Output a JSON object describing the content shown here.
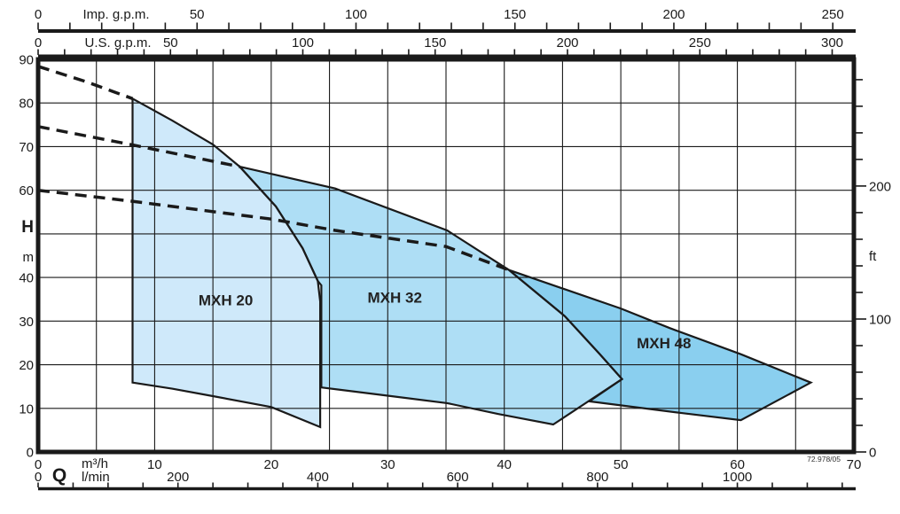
{
  "labels": {
    "imp_axis": "Imp. g.p.m.",
    "us_axis": "U.S. g.p.m.",
    "head": "H",
    "head_unit": "m",
    "ft_unit": "ft",
    "flow": "Q",
    "flow_unit_m3h": "m³/h",
    "flow_unit_lmin": "l/min",
    "code": "72.978/05"
  },
  "colors": {
    "line": "#1a1a1a",
    "text": "#1a1a1a",
    "mxh20_fill": "#cfe9fa",
    "mxh32_fill": "#aedef5",
    "mxh48_fill": "#8acfef"
  },
  "axes": {
    "imp_gpm": {
      "name": "Imp. g.p.m.",
      "major_ticks": [
        0,
        50,
        100,
        150,
        200,
        250
      ],
      "minor_step": 10,
      "max": 250,
      "m3h_per_unit": 0.27276
    },
    "us_gpm": {
      "name": "U.S. g.p.m.",
      "major_ticks": [
        0,
        50,
        100,
        150,
        200,
        250,
        300
      ],
      "minor_step": 10,
      "max": 300,
      "m3h_per_unit": 0.22712
    },
    "h_m": {
      "name": "H (m)",
      "labeled_ticks": [
        90,
        80,
        70,
        60,
        40,
        30,
        20,
        10,
        0
      ],
      "grid_step": 10,
      "range": [
        0,
        90
      ]
    },
    "ft": {
      "name": "ft",
      "major_ticks": [
        0,
        100,
        200
      ],
      "minor_step": 20,
      "max": 280,
      "m_per_unit": 0.3048
    },
    "q_m3h": {
      "name": "Q (m³/h)",
      "labeled_ticks": [
        0,
        10,
        20,
        30,
        40,
        50,
        60,
        70
      ],
      "grid_step": 5,
      "range": [
        0,
        70
      ]
    },
    "l_min": {
      "name": "l/min",
      "major_ticks": [
        0,
        200,
        400,
        600,
        800,
        1000
      ],
      "minor_step": 50,
      "max": 1150,
      "m3h_per_unit": 0.06
    }
  },
  "chart_data": {
    "type": "area",
    "xlabel": "Q (m³/h)",
    "ylabel": "H (m)",
    "xlim": [
      0,
      70
    ],
    "ylim": [
      0,
      90
    ],
    "grid": true,
    "series": [
      {
        "name": "MXH 20",
        "color": "#cfe9fa",
        "label_pos": [
          16.1,
          33.6
        ],
        "polygon": [
          [
            8.1,
            81
          ],
          [
            11.5,
            76
          ],
          [
            15,
            70.5
          ],
          [
            17.3,
            65.4
          ],
          [
            20.4,
            56.3
          ],
          [
            22.7,
            46.7
          ],
          [
            24,
            39.2
          ],
          [
            24.2,
            34.5
          ],
          [
            24.2,
            5.7
          ],
          [
            20,
            10.3
          ],
          [
            15,
            12.8
          ],
          [
            11.5,
            14.5
          ],
          [
            8.1,
            15.9
          ]
        ]
      },
      {
        "name": "MXH 32",
        "color": "#aedef5",
        "label_pos": [
          30.6,
          34.2
        ],
        "polygon": [
          [
            17.3,
            65.4
          ],
          [
            25.5,
            60.4
          ],
          [
            35.1,
            50.8
          ],
          [
            40.4,
            41.7
          ],
          [
            45.2,
            31.1
          ],
          [
            48.2,
            22.4
          ],
          [
            50.1,
            16.7
          ],
          [
            44.2,
            6.3
          ],
          [
            39.5,
            8.7
          ],
          [
            35.1,
            11.2
          ],
          [
            30.3,
            12.8
          ],
          [
            24.3,
            14.8
          ],
          [
            24.3,
            38.2
          ],
          [
            24,
            39.2
          ],
          [
            22.7,
            46.7
          ],
          [
            20.4,
            56.3
          ]
        ]
      },
      {
        "name": "MXH 48",
        "color": "#8acfef",
        "label_pos": [
          53.7,
          23.8
        ],
        "polygon": [
          [
            40.4,
            41.7
          ],
          [
            50,
            32.9
          ],
          [
            54.2,
            28.4
          ],
          [
            60.3,
            22.4
          ],
          [
            66.3,
            15.9
          ],
          [
            60.3,
            7.3
          ],
          [
            55.3,
            8.9
          ],
          [
            47.3,
            11.6
          ],
          [
            50.1,
            16.7
          ],
          [
            48.2,
            22.4
          ],
          [
            45.2,
            31.1
          ]
        ]
      }
    ],
    "dashed_curves": [
      {
        "name": "max-head-curve-mxh20",
        "points": [
          [
            0,
            88.4
          ],
          [
            4.1,
            84.9
          ],
          [
            8.1,
            81
          ]
        ]
      },
      {
        "name": "max-head-curve-mxh32",
        "points": [
          [
            0,
            74.6
          ],
          [
            7.9,
            70.5
          ],
          [
            17.3,
            65.4
          ]
        ]
      },
      {
        "name": "max-head-curve-mxh48",
        "points": [
          [
            0,
            60
          ],
          [
            8,
            57.5
          ],
          [
            20,
            53.4
          ],
          [
            25.5,
            50.8
          ],
          [
            35,
            47.1
          ],
          [
            40.4,
            41.7
          ]
        ]
      }
    ]
  }
}
